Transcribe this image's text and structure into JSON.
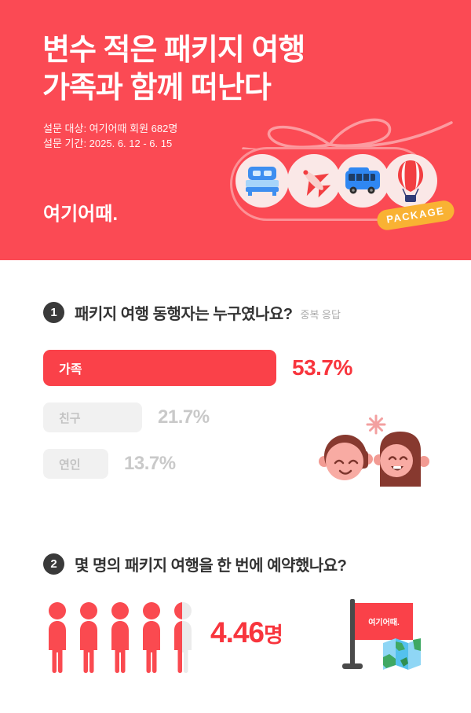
{
  "header": {
    "title_line1": "변수 적은 패키지 여행",
    "title_line2": "가족과 함께 떠난다",
    "survey_target": "설문 대상: 여기어때 회원 682명",
    "survey_period": "설문 기간: 2025. 6. 12 - 6. 15",
    "logo": "여기어때.",
    "package_tag": "PACKAGE",
    "bg_color": "#FB4A54",
    "icons": [
      "bed-icon",
      "plane-icon",
      "bus-icon",
      "hot-air-balloon-icon",
      "ribbon-bow-icon"
    ]
  },
  "q1": {
    "number": "1",
    "question": "패키지 여행 동행자는 누구였나요?",
    "note": "중복 응답"
  },
  "q2": {
    "number": "2",
    "question": "몇 명의 패키지 여행을 한 번에 예약했나요?"
  },
  "flag": {
    "logo": "여기어때."
  },
  "colors": {
    "brand_red": "#FB4A54",
    "bar_red": "#FA4149",
    "value_red": "#F8353D",
    "bar_gray": "#F1F1F1",
    "gray_text": "#C9C9C9",
    "tag_yellow": "#F9B233",
    "badge_dark": "#3A3A3A"
  },
  "chart_data": [
    {
      "type": "bar",
      "orientation": "horizontal",
      "title": "패키지 여행 동행자는 누구였나요?",
      "note": "중복 응답",
      "categories": [
        "가족",
        "친구",
        "연인"
      ],
      "values": [
        53.7,
        21.7,
        13.7
      ],
      "value_labels": [
        "53.7%",
        "21.7%",
        "13.7%"
      ],
      "highlight_index": 0,
      "highlight_color": "#FA4149",
      "muted_color": "#F1F1F1",
      "grid": false
    },
    {
      "type": "pictogram",
      "title": "몇 명의 패키지 여행을 한 번에 예약했나요?",
      "value": 4.46,
      "value_number": "4.46",
      "value_unit": "명",
      "total_icons": 5,
      "icon": "person-icon",
      "icon_color": "#FA4A50",
      "icon_empty_color": "#EBEBEB"
    }
  ]
}
